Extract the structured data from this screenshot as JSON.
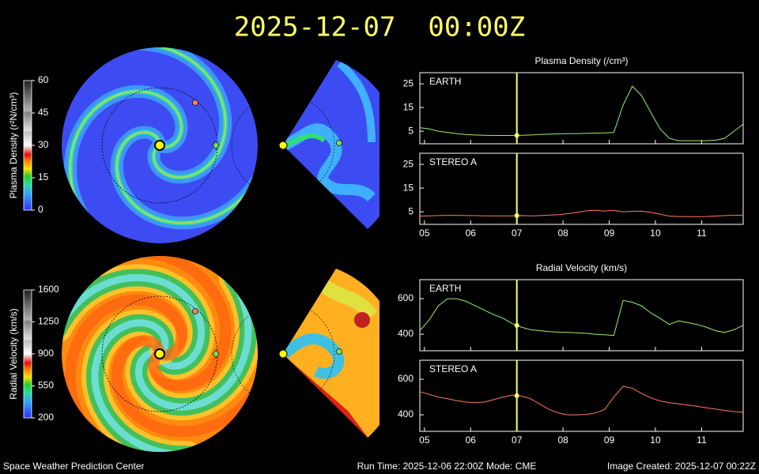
{
  "header": {
    "title": "2025-12-07  00:00Z"
  },
  "footer": {
    "left": "Space Weather Prediction Center",
    "center": "Run Time: 2025-12-06 22:00Z  Mode: CME",
    "right": "Image Created: 2025-12-07 00:22Z"
  },
  "chart_data": [
    {
      "type": "colorbar",
      "label": "Plasma Density (r²N/cm³)",
      "ylim": [
        0,
        60
      ],
      "yticks": [
        0,
        15,
        30,
        45,
        60
      ]
    },
    {
      "type": "colorbar",
      "label": "Radial Velocity (km/s)",
      "ylim": [
        200,
        1600
      ],
      "yticks": [
        200,
        550,
        900,
        1250,
        1600
      ]
    },
    {
      "type": "line",
      "title": "Plasma Density (/cm³)",
      "marker_x": 7,
      "marker_color": "#ffff66",
      "x": [
        4.9,
        5.1,
        5.3,
        5.5,
        5.7,
        5.9,
        6.1,
        6.3,
        6.5,
        6.7,
        6.9,
        7.1,
        7.3,
        7.5,
        7.7,
        7.9,
        8.1,
        8.3,
        8.5,
        8.7,
        8.9,
        9.1,
        9.3,
        9.5,
        9.7,
        9.9,
        10.1,
        10.3,
        10.5,
        10.7,
        10.9,
        11.1,
        11.3,
        11.5,
        11.7,
        11.9
      ],
      "xlim": [
        4.9,
        11.9
      ],
      "xticks": [
        {
          "value": 5,
          "label": "05"
        },
        {
          "value": 6,
          "label": "06"
        },
        {
          "value": 7,
          "label": "07"
        },
        {
          "value": 8,
          "label": "08"
        },
        {
          "value": 9,
          "label": "09"
        },
        {
          "value": 10,
          "label": "10"
        },
        {
          "value": 11,
          "label": "11"
        }
      ],
      "ylim": [
        -0.3,
        29.7
      ],
      "yticks": [
        5,
        15,
        25
      ],
      "series": [
        {
          "name": "EARTH",
          "color": "#9af06a",
          "values": [
            6.5,
            6,
            5,
            4.5,
            4,
            3.6,
            3.4,
            3.3,
            3.2,
            3.2,
            3.2,
            3.3,
            3.4,
            3.6,
            3.8,
            3.9,
            4,
            4,
            4.1,
            4.2,
            4.3,
            4.5,
            16,
            24,
            20,
            13,
            6,
            2,
            1,
            1,
            1,
            1,
            1.2,
            2,
            5,
            8
          ]
        },
        {
          "name": "STEREO A",
          "color": "#ff7a60",
          "values": [
            3.2,
            3.3,
            3.4,
            3.5,
            3.5,
            3.4,
            3.4,
            3.3,
            3.3,
            3.3,
            3.3,
            3.4,
            3.3,
            3.4,
            3.6,
            3.8,
            4.2,
            4.8,
            5.4,
            5.6,
            5.3,
            5.6,
            5,
            5.2,
            5.3,
            4.8,
            4,
            3.2,
            3,
            3,
            2.9,
            3,
            3.2,
            3.4,
            3.5,
            3.6
          ]
        }
      ]
    },
    {
      "type": "line",
      "title": "Radial Velocity (km/s)",
      "marker_x": 7,
      "marker_color": "#ffff66",
      "x": [
        4.9,
        5.1,
        5.3,
        5.5,
        5.7,
        5.9,
        6.1,
        6.3,
        6.5,
        6.7,
        6.9,
        7.1,
        7.3,
        7.5,
        7.7,
        7.9,
        8.1,
        8.3,
        8.5,
        8.7,
        8.9,
        9.1,
        9.3,
        9.5,
        9.7,
        9.9,
        10.1,
        10.3,
        10.5,
        10.7,
        10.9,
        11.1,
        11.3,
        11.5,
        11.7,
        11.9
      ],
      "xlim": [
        4.9,
        11.9
      ],
      "xticks": [
        {
          "value": 5,
          "label": "05"
        },
        {
          "value": 6,
          "label": "06"
        },
        {
          "value": 7,
          "label": "07"
        },
        {
          "value": 8,
          "label": "08"
        },
        {
          "value": 9,
          "label": "09"
        },
        {
          "value": 10,
          "label": "10"
        },
        {
          "value": 11,
          "label": "11"
        }
      ],
      "ylim": [
        307,
        707
      ],
      "yticks": [
        400,
        600
      ],
      "series": [
        {
          "name": "EARTH",
          "color": "#9af06a",
          "values": [
            420,
            480,
            560,
            600,
            600,
            585,
            560,
            535,
            510,
            490,
            460,
            440,
            425,
            420,
            415,
            412,
            410,
            408,
            405,
            400,
            397,
            393,
            590,
            580,
            560,
            520,
            490,
            455,
            475,
            465,
            455,
            440,
            420,
            410,
            425,
            450
          ]
        },
        {
          "name": "STEREO A",
          "color": "#ff7a60",
          "values": [
            530,
            515,
            500,
            490,
            480,
            472,
            468,
            472,
            485,
            500,
            510,
            505,
            490,
            460,
            430,
            410,
            400,
            400,
            402,
            410,
            430,
            500,
            560,
            550,
            520,
            495,
            478,
            468,
            462,
            455,
            448,
            440,
            432,
            425,
            418,
            415
          ]
        }
      ]
    }
  ]
}
